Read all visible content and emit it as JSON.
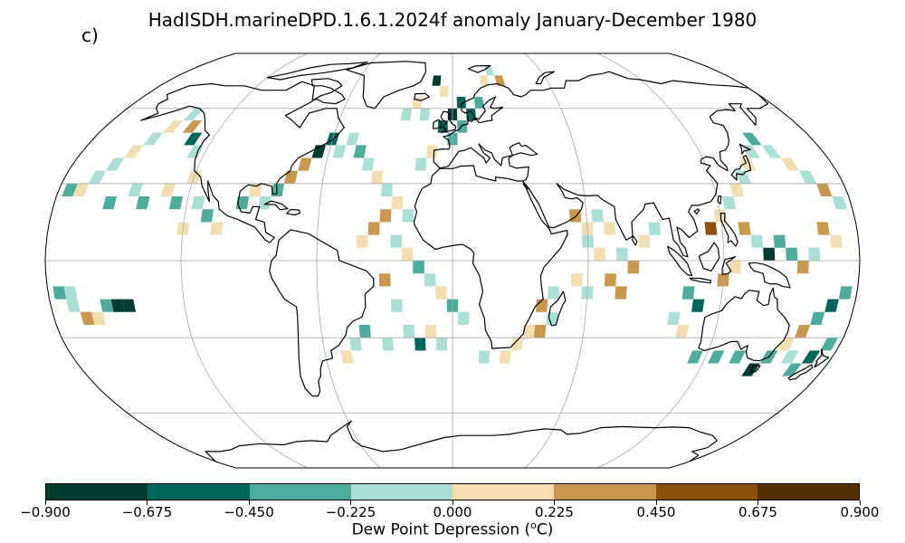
{
  "figure": {
    "panel_label": "c)",
    "title": "HadISDH.marineDPD.1.6.1.2024f anomaly January-December 1980"
  },
  "map": {
    "projection": "Robinson",
    "gridlines": "on",
    "coastlines": "black"
  },
  "colorbar": {
    "variable": "Dew Point Depression",
    "unit": "oC",
    "label_prefix": "Dew Point Depression (",
    "label_unit_sup": "o",
    "label_unit_rest": "C)",
    "bins": [
      -0.9,
      -0.675,
      -0.45,
      -0.225,
      0.0,
      0.225,
      0.45,
      0.675,
      0.9
    ],
    "tick_labels": [
      "−0.900",
      "−0.675",
      "−0.450",
      "−0.225",
      "0.000",
      "0.225",
      "0.450",
      "0.675",
      "0.900"
    ],
    "colors": [
      "#003c30",
      "#01665e",
      "#4dac9e",
      "#aadfd6",
      "#f2deb0",
      "#c9984e",
      "#8c510a",
      "#543005"
    ]
  },
  "chart_data": {
    "type": "heatmap",
    "title": "HadISDH.marineDPD.1.6.1.2024f anomaly January-December 1980",
    "value_label": "Dew Point Depression (oC)",
    "value_range": [
      -0.9,
      0.9
    ],
    "cell_size_deg": 5,
    "cells": [
      {
        "lon": -175,
        "lat": 27.5,
        "v": -0.3
      },
      {
        "lon": -170,
        "lat": 27.5,
        "v": 0.1
      },
      {
        "lon": -165,
        "lat": 32.5,
        "v": -0.1
      },
      {
        "lon": -160,
        "lat": 37.5,
        "v": -0.1
      },
      {
        "lon": -155,
        "lat": 42.5,
        "v": 0.1
      },
      {
        "lon": -150,
        "lat": 47.5,
        "v": -0.1
      },
      {
        "lon": -145,
        "lat": 52.5,
        "v": 0.1
      },
      {
        "lon": -140,
        "lat": 57.5,
        "v": -0.1
      },
      {
        "lon": -135,
        "lat": 52.5,
        "v": 0.3
      },
      {
        "lon": -130,
        "lat": 47.5,
        "v": -0.6
      },
      {
        "lon": -125,
        "lat": 42.5,
        "v": -0.1
      },
      {
        "lon": -120,
        "lat": 32.5,
        "v": 0.1
      },
      {
        "lon": -115,
        "lat": 22.5,
        "v": -0.1
      },
      {
        "lon": -110,
        "lat": 17.5,
        "v": -0.3
      },
      {
        "lon": -105,
        "lat": 12.5,
        "v": 0.1
      },
      {
        "lon": -155,
        "lat": 22.5,
        "v": -0.3
      },
      {
        "lon": -145,
        "lat": 27.5,
        "v": -0.1
      },
      {
        "lon": -140,
        "lat": 22.5,
        "v": -0.3
      },
      {
        "lon": -130,
        "lat": 27.5,
        "v": 0.1
      },
      {
        "lon": -125,
        "lat": 22.5,
        "v": -0.3
      },
      {
        "lon": -120,
        "lat": 12.5,
        "v": 0.1
      },
      {
        "lon": -175,
        "lat": -12.5,
        "v": -0.3
      },
      {
        "lon": -170,
        "lat": -17.5,
        "v": -0.1
      },
      {
        "lon": -165,
        "lat": -22.5,
        "v": 0.3
      },
      {
        "lon": -160,
        "lat": -22.5,
        "v": 0.1
      },
      {
        "lon": -150,
        "lat": -17.5,
        "v": -0.8
      },
      {
        "lon": -145,
        "lat": -17.5,
        "v": -0.8
      },
      {
        "lon": -155,
        "lat": -17.5,
        "v": -0.3
      },
      {
        "lon": -170,
        "lat": -12.5,
        "v": -0.1
      },
      {
        "lon": -95,
        "lat": 22.5,
        "v": -0.3
      },
      {
        "lon": -90,
        "lat": 27.5,
        "v": 0.1
      },
      {
        "lon": -85,
        "lat": 22.5,
        "v": -0.1
      },
      {
        "lon": -80,
        "lat": 27.5,
        "v": -0.3
      },
      {
        "lon": -75,
        "lat": 32.5,
        "v": 0.3
      },
      {
        "lon": -70,
        "lat": 37.5,
        "v": 0.3
      },
      {
        "lon": -65,
        "lat": 42.5,
        "v": -0.8
      },
      {
        "lon": -60,
        "lat": 47.5,
        "v": -0.6
      },
      {
        "lon": -55,
        "lat": 42.5,
        "v": -0.1
      },
      {
        "lon": -50,
        "lat": 47.5,
        "v": -0.1
      },
      {
        "lon": -45,
        "lat": 42.5,
        "v": -0.3
      },
      {
        "lon": -40,
        "lat": 37.5,
        "v": -0.1
      },
      {
        "lon": -35,
        "lat": 32.5,
        "v": 0.1
      },
      {
        "lon": -30,
        "lat": 27.5,
        "v": -0.1
      },
      {
        "lon": -25,
        "lat": 22.5,
        "v": 0.1
      },
      {
        "lon": -20,
        "lat": 17.5,
        "v": -0.1
      },
      {
        "lon": -30,
        "lat": 17.5,
        "v": 0.3
      },
      {
        "lon": -35,
        "lat": 12.5,
        "v": 0.3
      },
      {
        "lon": -40,
        "lat": 7.5,
        "v": 0.1
      },
      {
        "lon": -25,
        "lat": 7.5,
        "v": -0.1
      },
      {
        "lon": -20,
        "lat": 2.5,
        "v": 0.1
      },
      {
        "lon": -15,
        "lat": -2.5,
        "v": -0.3
      },
      {
        "lon": -10,
        "lat": -7.5,
        "v": -0.1
      },
      {
        "lon": -5,
        "lat": -12.5,
        "v": 0.1
      },
      {
        "lon": 0,
        "lat": -17.5,
        "v": -0.3
      },
      {
        "lon": 5,
        "lat": -22.5,
        "v": -0.1
      },
      {
        "lon": -30,
        "lat": -7.5,
        "v": 0.3
      },
      {
        "lon": -25,
        "lat": -17.5,
        "v": -0.1
      },
      {
        "lon": -20,
        "lat": -27.5,
        "v": -0.1
      },
      {
        "lon": -40,
        "lat": -27.5,
        "v": -0.3
      },
      {
        "lon": -45,
        "lat": -32.5,
        "v": -0.1
      },
      {
        "lon": -50,
        "lat": -37.5,
        "v": 0.1
      },
      {
        "lon": -30,
        "lat": -32.5,
        "v": -0.1
      },
      {
        "lon": -15,
        "lat": -32.5,
        "v": -0.6
      },
      {
        "lon": -10,
        "lat": -27.5,
        "v": 0.1
      },
      {
        "lon": -5,
        "lat": -32.5,
        "v": -0.1
      },
      {
        "lon": 0,
        "lat": 47.5,
        "v": -0.3
      },
      {
        "lon": -5,
        "lat": 52.5,
        "v": -0.6
      },
      {
        "lon": 0,
        "lat": 57.5,
        "v": -0.8
      },
      {
        "lon": 5,
        "lat": 62.5,
        "v": -0.6
      },
      {
        "lon": -5,
        "lat": 67.5,
        "v": 0.1
      },
      {
        "lon": -10,
        "lat": 72.5,
        "v": -0.8
      },
      {
        "lon": 5,
        "lat": 52.5,
        "v": -0.3
      },
      {
        "lon": 10,
        "lat": 57.5,
        "v": -0.6
      },
      {
        "lon": 15,
        "lat": 62.5,
        "v": -0.3
      },
      {
        "lon": -15,
        "lat": 57.5,
        "v": -0.1
      },
      {
        "lon": -20,
        "lat": 62.5,
        "v": 0.1
      },
      {
        "lon": -25,
        "lat": 57.5,
        "v": -0.1
      },
      {
        "lon": -10,
        "lat": 42.5,
        "v": 0.1
      },
      {
        "lon": -15,
        "lat": 37.5,
        "v": -0.1
      },
      {
        "lon": 20,
        "lat": 72.5,
        "v": 0.1
      },
      {
        "lon": 25,
        "lat": 77.5,
        "v": -0.1
      },
      {
        "lon": 30,
        "lat": 72.5,
        "v": 0.3
      },
      {
        "lon": 55,
        "lat": 17.5,
        "v": 0.3
      },
      {
        "lon": 60,
        "lat": 12.5,
        "v": 0.1
      },
      {
        "lon": 65,
        "lat": 17.5,
        "v": -0.1
      },
      {
        "lon": 70,
        "lat": 12.5,
        "v": 0.1
      },
      {
        "lon": 60,
        "lat": 7.5,
        "v": -0.1
      },
      {
        "lon": 65,
        "lat": 2.5,
        "v": 0.1
      },
      {
        "lon": 75,
        "lat": 2.5,
        "v": -0.1
      },
      {
        "lon": 80,
        "lat": -2.5,
        "v": 0.3
      },
      {
        "lon": 85,
        "lat": 7.5,
        "v": 0.1
      },
      {
        "lon": 90,
        "lat": 12.5,
        "v": -0.1
      },
      {
        "lon": 55,
        "lat": -7.5,
        "v": 0.1
      },
      {
        "lon": 60,
        "lat": -12.5,
        "v": -0.1
      },
      {
        "lon": 70,
        "lat": -7.5,
        "v": 0.3
      },
      {
        "lon": 75,
        "lat": -12.5,
        "v": 0.3
      },
      {
        "lon": 45,
        "lat": -12.5,
        "v": -0.1
      },
      {
        "lon": 40,
        "lat": -17.5,
        "v": 0.3
      },
      {
        "lon": 35,
        "lat": -27.5,
        "v": 0.1
      },
      {
        "lon": 30,
        "lat": -32.5,
        "v": 0.1
      },
      {
        "lon": 40,
        "lat": -27.5,
        "v": 0.3
      },
      {
        "lon": 45,
        "lat": -22.5,
        "v": -0.1
      },
      {
        "lon": 25,
        "lat": -37.5,
        "v": 0.1
      },
      {
        "lon": 15,
        "lat": -37.5,
        "v": -0.1
      },
      {
        "lon": 115,
        "lat": 12.5,
        "v": 0.6
      },
      {
        "lon": 120,
        "lat": 17.5,
        "v": 0.1
      },
      {
        "lon": 125,
        "lat": 22.5,
        "v": -0.1
      },
      {
        "lon": 130,
        "lat": 27.5,
        "v": 0.1
      },
      {
        "lon": 135,
        "lat": 32.5,
        "v": -0.1
      },
      {
        "lon": 140,
        "lat": 37.5,
        "v": 0.1
      },
      {
        "lon": 145,
        "lat": 42.5,
        "v": -0.1
      },
      {
        "lon": 150,
        "lat": 47.5,
        "v": -0.3
      },
      {
        "lon": 155,
        "lat": 42.5,
        "v": -0.1
      },
      {
        "lon": 160,
        "lat": 37.5,
        "v": 0.1
      },
      {
        "lon": 165,
        "lat": 32.5,
        "v": -0.1
      },
      {
        "lon": 170,
        "lat": 27.5,
        "v": 0.3
      },
      {
        "lon": 175,
        "lat": 22.5,
        "v": -0.1
      },
      {
        "lon": 130,
        "lat": 12.5,
        "v": 0.3
      },
      {
        "lon": 135,
        "lat": 7.5,
        "v": -0.1
      },
      {
        "lon": 140,
        "lat": 2.5,
        "v": -0.8
      },
      {
        "lon": 145,
        "lat": 7.5,
        "v": -0.3
      },
      {
        "lon": 150,
        "lat": 2.5,
        "v": -0.3
      },
      {
        "lon": 155,
        "lat": -2.5,
        "v": 0.3
      },
      {
        "lon": 160,
        "lat": 2.5,
        "v": -0.1
      },
      {
        "lon": 165,
        "lat": 12.5,
        "v": 0.3
      },
      {
        "lon": 170,
        "lat": 7.5,
        "v": 0.1
      },
      {
        "lon": 120,
        "lat": -7.5,
        "v": 0.3
      },
      {
        "lon": 125,
        "lat": -2.5,
        "v": 0.1
      },
      {
        "lon": 105,
        "lat": -12.5,
        "v": -0.3
      },
      {
        "lon": 110,
        "lat": -17.5,
        "v": -0.6
      },
      {
        "lon": 100,
        "lat": -22.5,
        "v": -0.1
      },
      {
        "lon": 105,
        "lat": -27.5,
        "v": 0.1
      },
      {
        "lon": 115,
        "lat": -37.5,
        "v": -0.3
      },
      {
        "lon": 125,
        "lat": -37.5,
        "v": -0.3
      },
      {
        "lon": 135,
        "lat": -37.5,
        "v": -0.3
      },
      {
        "lon": 145,
        "lat": -42.5,
        "v": -0.8
      },
      {
        "lon": 150,
        "lat": -37.5,
        "v": -0.3
      },
      {
        "lon": 155,
        "lat": -32.5,
        "v": 0.1
      },
      {
        "lon": 160,
        "lat": -27.5,
        "v": 0.3
      },
      {
        "lon": 165,
        "lat": -22.5,
        "v": -0.3
      },
      {
        "lon": 170,
        "lat": -17.5,
        "v": -0.6
      },
      {
        "lon": 175,
        "lat": -12.5,
        "v": -0.3
      },
      {
        "lon": 170,
        "lat": -37.5,
        "v": -0.6
      },
      {
        "lon": 175,
        "lat": -32.5,
        "v": -0.3
      },
      {
        "lon": 160,
        "lat": -37.5,
        "v": -0.1
      },
      {
        "lon": 165,
        "lat": -42.5,
        "v": -0.3
      }
    ]
  }
}
